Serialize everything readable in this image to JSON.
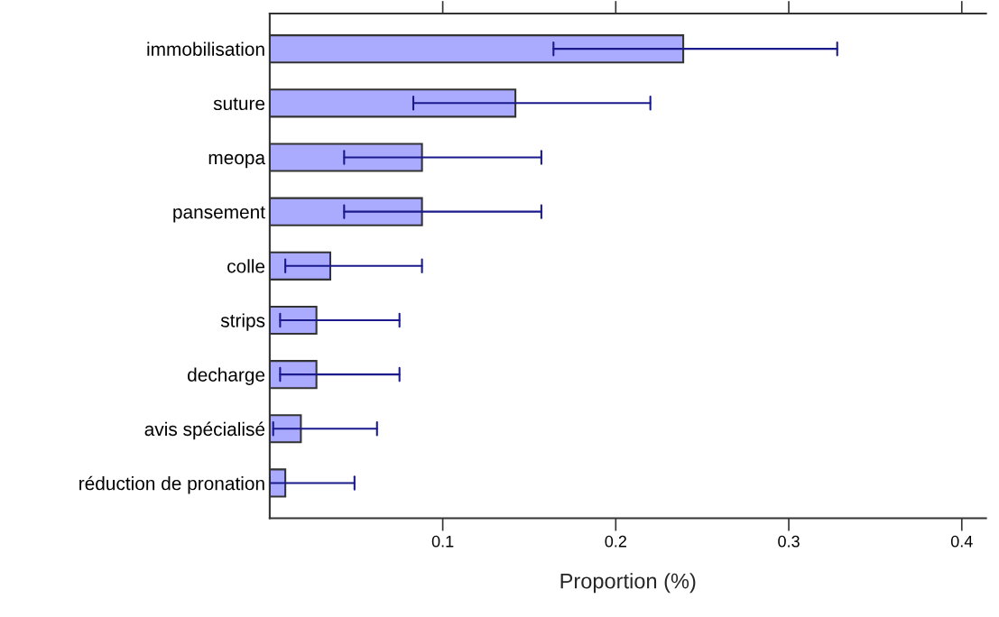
{
  "chart_data": {
    "type": "bar",
    "orientation": "horizontal",
    "xlabel": "Proportion (%)",
    "categories": [
      "immobilisation",
      "suture",
      "meopa",
      "pansement",
      "colle",
      "strips",
      "decharge",
      "avis spécialisé",
      "réduction de pronation"
    ],
    "values": [
      0.239,
      0.142,
      0.088,
      0.088,
      0.035,
      0.027,
      0.027,
      0.018,
      0.009
    ],
    "errors": [
      [
        0.164,
        0.328
      ],
      [
        0.083,
        0.22
      ],
      [
        0.043,
        0.157
      ],
      [
        0.043,
        0.157
      ],
      [
        0.009,
        0.088
      ],
      [
        0.006,
        0.075
      ],
      [
        0.006,
        0.075
      ],
      [
        0.002,
        0.062
      ],
      [
        0.0,
        0.049
      ]
    ],
    "color": "#aaaaff",
    "xlim": [
      0,
      0.414
    ],
    "xticks": [
      0.1,
      0.2,
      0.3,
      0.4
    ],
    "grid": false
  }
}
